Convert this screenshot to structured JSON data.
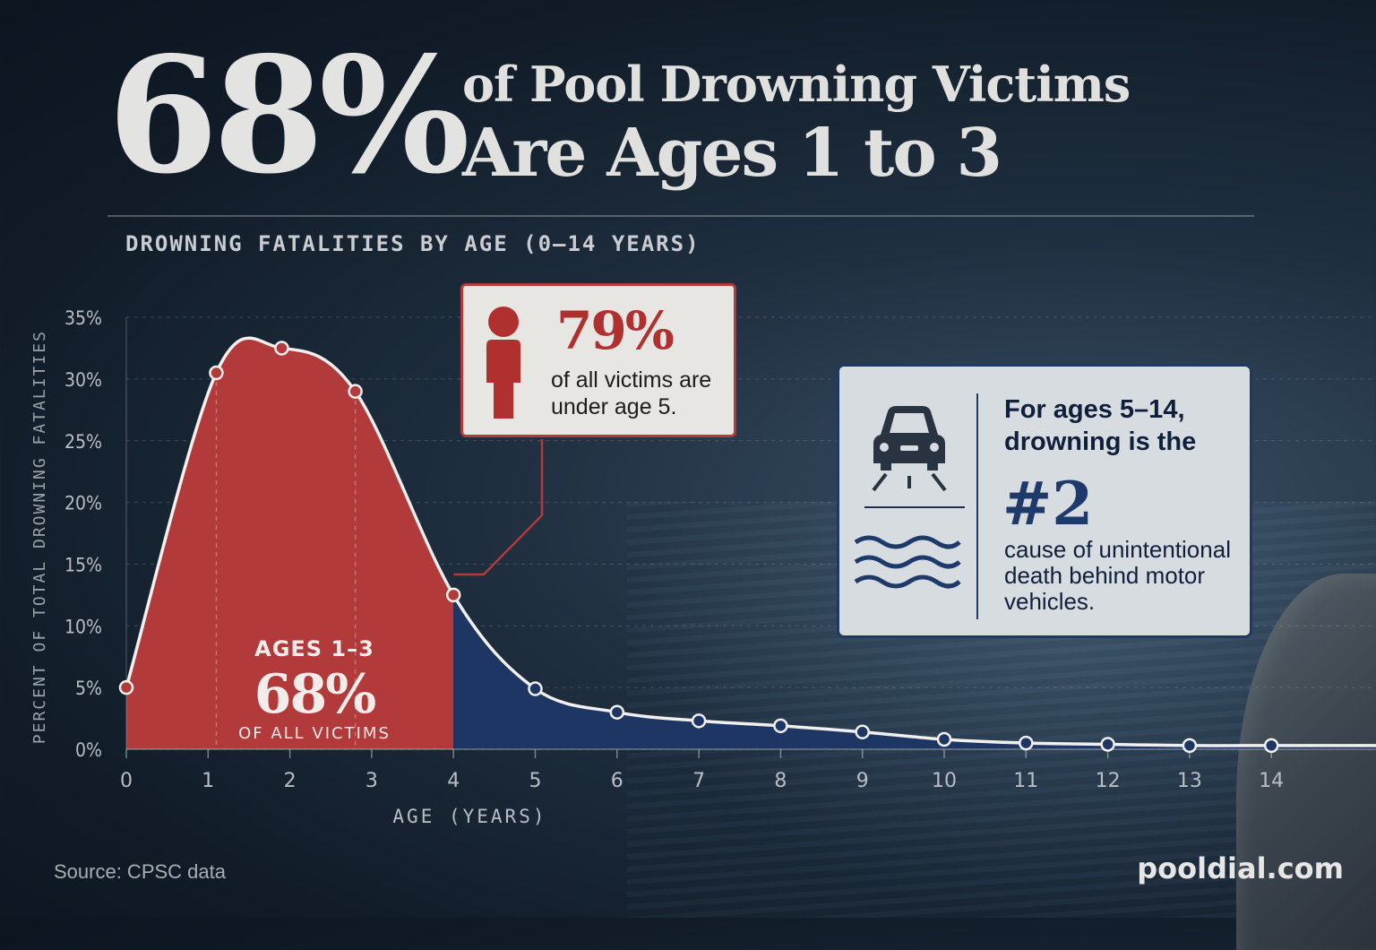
{
  "headline": {
    "big_stat": "68%",
    "line1": "of Pool Drowning Victims",
    "line2": "Are Ages 1 to 3"
  },
  "subtitle": "DROWNING FATALITIES BY AGE (0–14 YEARS)",
  "callout_red": {
    "icon": "person-icon",
    "stat": "79%",
    "text": "of all victims are under age 5."
  },
  "callout_blue": {
    "icons": [
      "car-icon",
      "waves-icon"
    ],
    "text1": "For ages 5–14, drowning is the",
    "stat": "#2",
    "text2": "cause of unintentional death behind motor vehicles."
  },
  "source": "Source: CPSC data",
  "brand": "pooldial.com",
  "colors": {
    "highlight_red": "#b23a3a",
    "area_blue": "#1d3663",
    "text_light": "#e3e3e1"
  },
  "chart_data": {
    "type": "area",
    "xlabel": "AGE (YEARS)",
    "ylabel": "PERCENT OF TOTAL DROWNING FATALITIES",
    "xlim": [
      0,
      15.5
    ],
    "ylim": [
      0,
      35
    ],
    "x_ticks": [
      0,
      1,
      2,
      3,
      4,
      5,
      6,
      7,
      8,
      9,
      10,
      11,
      12,
      13,
      14
    ],
    "y_ticks": [
      0,
      5,
      10,
      15,
      20,
      25,
      30,
      35
    ],
    "y_tick_labels": [
      "0%",
      "5%",
      "10%",
      "15%",
      "20%",
      "25%",
      "30%",
      "35%"
    ],
    "grid": true,
    "series": [
      {
        "x": [
          0,
          1.1,
          1.9,
          2.8,
          4.0,
          5.0,
          6.0,
          7.0,
          8.0,
          9.0,
          10.0,
          11.0,
          12.0,
          13.0,
          14.0,
          15.5
        ],
        "y": [
          5.0,
          30.5,
          32.5,
          29.0,
          12.5,
          4.9,
          3.0,
          2.3,
          1.9,
          1.4,
          0.8,
          0.5,
          0.4,
          0.3,
          0.3,
          0.3
        ]
      }
    ],
    "highlight": {
      "range": [
        0,
        4
      ],
      "label_top": "AGES 1–3",
      "label_value": "68%",
      "label_bottom": "OF ALL VICTIMS"
    }
  }
}
